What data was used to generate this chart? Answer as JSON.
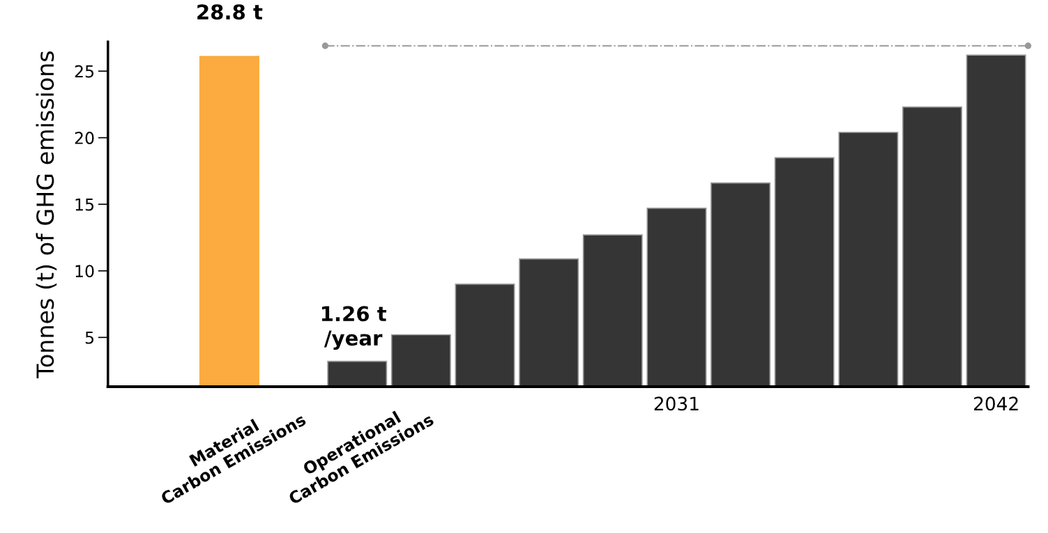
{
  "chart_data": {
    "type": "bar",
    "ylabel": "Tonnes (t) of GHG emissions",
    "categories": [
      "Material\nCarbon Emissions",
      null,
      "Operational\nCarbon Emissions",
      null,
      null,
      null,
      null,
      "2031",
      null,
      null,
      null,
      null,
      "2042"
    ],
    "values": [
      26.1,
      null,
      3.2,
      5.2,
      9.0,
      10.9,
      12.7,
      14.7,
      16.6,
      18.5,
      20.4,
      22.3,
      26.2
    ],
    "colors": [
      "#fbab3f",
      null,
      "#353535",
      "#353535",
      "#353535",
      "#353535",
      "#353535",
      "#353535",
      "#353535",
      "#353535",
      "#353535",
      "#353535",
      "#353535"
    ],
    "ylim": [
      1.3,
      27.2
    ],
    "yticks": [
      5,
      10,
      15,
      20,
      25
    ],
    "grid": false,
    "legend": false,
    "ref_lines": [
      {
        "axis": "y",
        "value": 26.9,
        "color": "#999999",
        "line_style": "dashdot"
      }
    ],
    "annotations": [
      "28.8 t",
      "1.26 t\n/year"
    ]
  }
}
